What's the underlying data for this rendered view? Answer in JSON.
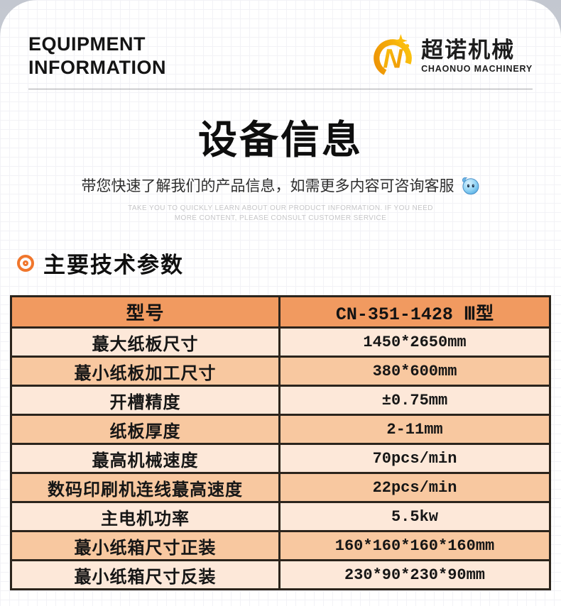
{
  "header": {
    "title_line1": "EQUIPMENT",
    "title_line2": "INFORMATION"
  },
  "logo": {
    "mark_letter": "N",
    "name_cn": "超诺机械",
    "name_en": "CHAONUO MACHINERY",
    "gold_light": "#fcc60f",
    "gold_dark": "#ec8f04"
  },
  "hero": {
    "title": "设备信息",
    "subtitle": "带您快速了解我们的产品信息，如需更多内容可咨询客服",
    "mascot_icon": "blue-ball-customer-service-icon",
    "note_line1": "TAKE YOU TO QUICKLY LEARN ABOUT OUR PRODUCT INFORMATION. IF YOU NEED",
    "note_line2": "MORE CONTENT, PLEASE CONSULT CUSTOMER SERVICE"
  },
  "section": {
    "title": "主要技术参数",
    "bullet_icon": "double-ring-bullet-icon",
    "accent": "#f0762c"
  },
  "spec_table": {
    "type": "table",
    "header": [
      "型号",
      "CN-351-1428 Ⅲ型"
    ],
    "rows": [
      [
        "蕞大纸板尺寸",
        "1450*2650mm"
      ],
      [
        "蕞小纸板加工尺寸",
        "380*600mm"
      ],
      [
        "开槽精度",
        "±0.75mm"
      ],
      [
        "纸板厚度",
        "2-11mm"
      ],
      [
        "蕞高机械速度",
        "70pcs/min"
      ],
      [
        "数码印刷机连线蕞高速度",
        "22pcs/min"
      ],
      [
        "主电机功率",
        "5.5kw"
      ],
      [
        "蕞小纸箱尺寸正装",
        "160*160*160*160mm"
      ],
      [
        "蕞小纸箱尺寸反装",
        "230*90*230*90mm"
      ]
    ],
    "colors": {
      "header_bg": "#f19a60",
      "row_light": "#fde8d9",
      "row_medium": "#f8c8a0",
      "border": "#2b241c"
    }
  }
}
